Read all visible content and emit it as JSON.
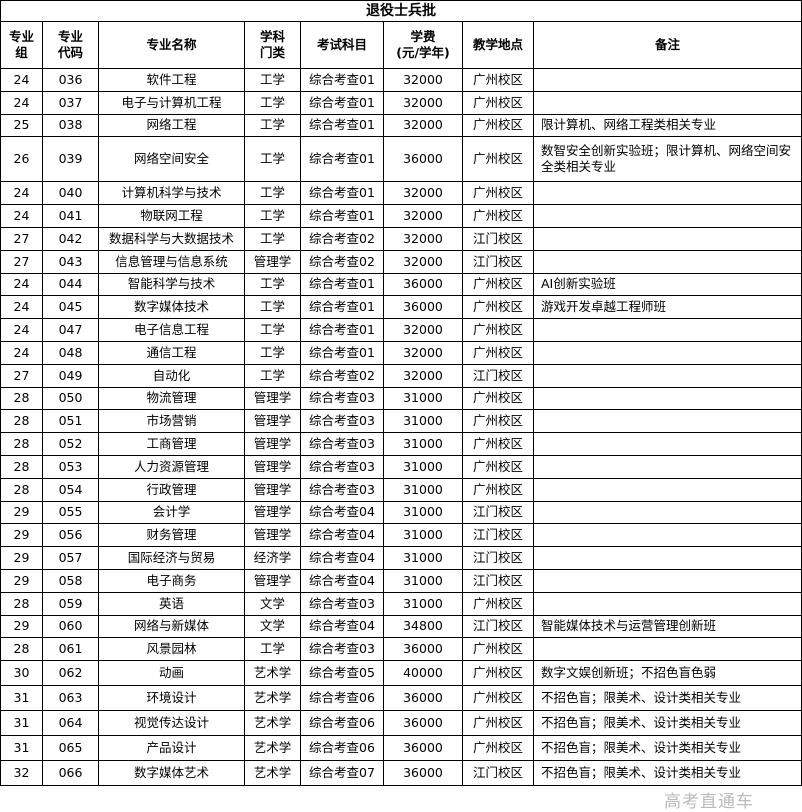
{
  "table": {
    "title": "退役士兵批",
    "headers": [
      "专业\n组",
      "专业\n代码",
      "专业名称",
      "学科\n门类",
      "考试科目",
      "学费\n(元/学年)",
      "教学地点",
      "备注"
    ],
    "rows": [
      [
        24,
        "036",
        "软件工程",
        "工学",
        "综合考查01",
        32000,
        "广州校区",
        null
      ],
      [
        24,
        "037",
        "电子与计算机工程",
        "工学",
        "综合考查01",
        32000,
        "广州校区",
        null
      ],
      [
        25,
        "038",
        "网络工程",
        "工学",
        "综合考查01",
        32000,
        "广州校区",
        "限计算机、网络工程类相关专业"
      ],
      [
        26,
        "039",
        "网络空间安全",
        "工学",
        "综合考查01",
        36000,
        "广州校区",
        "数智安全创新实验班；限计算机、网络空间安全类相关专业"
      ],
      [
        24,
        "040",
        "计算机科学与技术",
        "工学",
        "综合考查01",
        32000,
        "广州校区",
        null
      ],
      [
        24,
        "041",
        "物联网工程",
        "工学",
        "综合考查01",
        32000,
        "广州校区",
        null
      ],
      [
        27,
        "042",
        "数据科学与大数据技术",
        "工学",
        "综合考查02",
        32000,
        "江门校区",
        null
      ],
      [
        27,
        "043",
        "信息管理与信息系统",
        "管理学",
        "综合考查02",
        32000,
        "江门校区",
        null
      ],
      [
        24,
        "044",
        "智能科学与技术",
        "工学",
        "综合考查01",
        36000,
        "广州校区",
        "AI创新实验班"
      ],
      [
        24,
        "045",
        "数字媒体技术",
        "工学",
        "综合考查01",
        36000,
        "广州校区",
        "游戏开发卓越工程师班"
      ],
      [
        24,
        "047",
        "电子信息工程",
        "工学",
        "综合考查01",
        32000,
        "广州校区",
        null
      ],
      [
        24,
        "048",
        "通信工程",
        "工学",
        "综合考查01",
        32000,
        "广州校区",
        null
      ],
      [
        27,
        "049",
        "自动化",
        "工学",
        "综合考查02",
        32000,
        "江门校区",
        null
      ],
      [
        28,
        "050",
        "物流管理",
        "管理学",
        "综合考查03",
        31000,
        "广州校区",
        null
      ],
      [
        28,
        "051",
        "市场营销",
        "管理学",
        "综合考查03",
        31000,
        "广州校区",
        null
      ],
      [
        28,
        "052",
        "工商管理",
        "管理学",
        "综合考查03",
        31000,
        "广州校区",
        null
      ],
      [
        28,
        "053",
        "人力资源管理",
        "管理学",
        "综合考查03",
        31000,
        "广州校区",
        null
      ],
      [
        28,
        "054",
        "行政管理",
        "管理学",
        "综合考查03",
        31000,
        "广州校区",
        null
      ],
      [
        29,
        "055",
        "会计学",
        "管理学",
        "综合考查04",
        31000,
        "江门校区",
        null
      ],
      [
        29,
        "056",
        "财务管理",
        "管理学",
        "综合考查04",
        31000,
        "江门校区",
        null
      ],
      [
        29,
        "057",
        "国际经济与贸易",
        "经济学",
        "综合考查04",
        31000,
        "江门校区",
        null
      ],
      [
        29,
        "058",
        "电子商务",
        "管理学",
        "综合考查04",
        31000,
        "江门校区",
        null
      ],
      [
        28,
        "059",
        "英语",
        "文学",
        "综合考查03",
        31000,
        "广州校区",
        null
      ],
      [
        29,
        "060",
        "网络与新媒体",
        "文学",
        "综合考查04",
        34800,
        "江门校区",
        "智能媒体技术与运营管理创新班"
      ],
      [
        28,
        "061",
        "风景园林",
        "工学",
        "综合考查03",
        36000,
        "广州校区",
        null
      ],
      [
        30,
        "062",
        "动画",
        "艺术学",
        "综合考查05",
        40000,
        "广州校区",
        "数字文娱创新班；不招色盲色弱"
      ],
      [
        31,
        "063",
        "环境设计",
        "艺术学",
        "综合考查06",
        36000,
        "广州校区",
        "不招色盲；限美术、设计类相关专业"
      ],
      [
        31,
        "064",
        "视觉传达设计",
        "艺术学",
        "综合考查06",
        36000,
        "广州校区",
        "不招色盲；限美术、设计类相关专业"
      ],
      [
        31,
        "065",
        "产品设计",
        "艺术学",
        "综合考查06",
        36000,
        "广州校区",
        "不招色盲；限美术、设计类相关专业"
      ],
      [
        32,
        "066",
        "数字媒体艺术",
        "艺术学",
        "综合考查07",
        36000,
        "江门校区",
        "不招色盲；限美术、设计类相关专业"
      ]
    ],
    "watermark": "高考直通车"
  }
}
